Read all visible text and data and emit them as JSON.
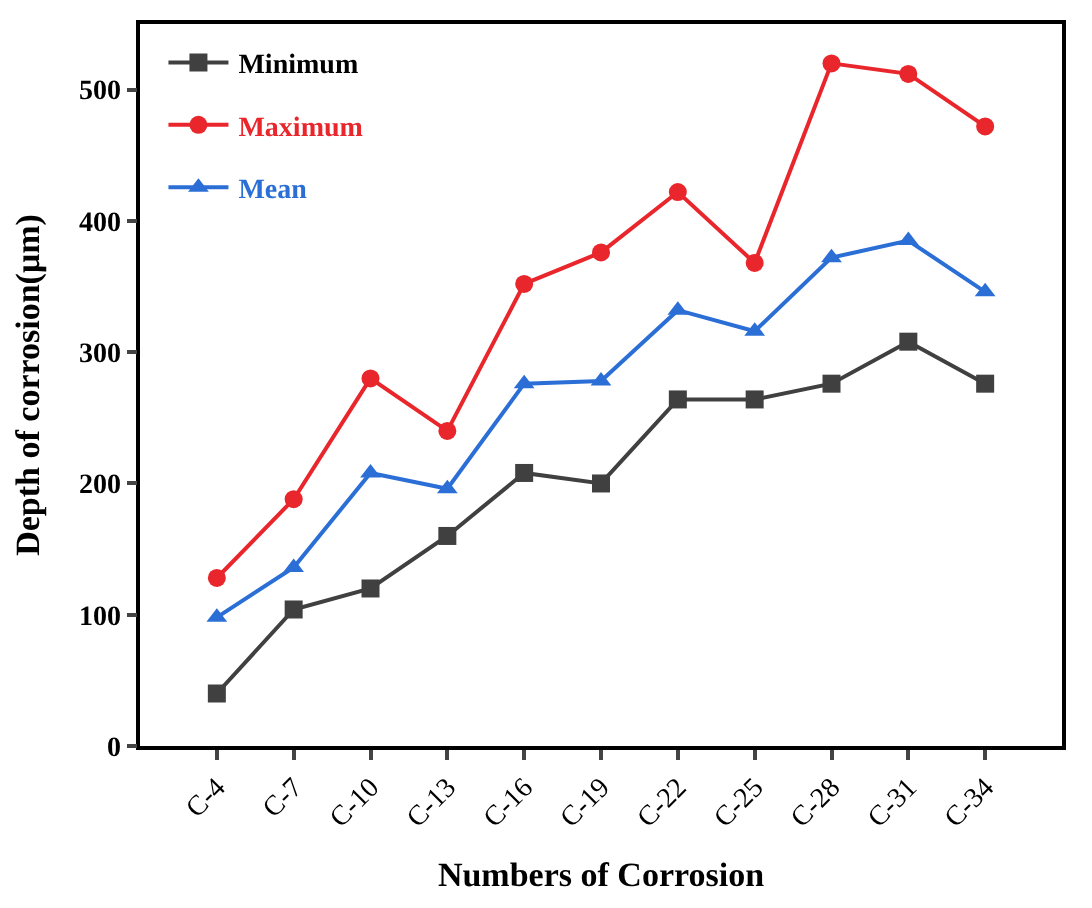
{
  "chart_data": {
    "type": "line",
    "xlabel": "Numbers of Corrosion",
    "ylabel": "Depth of corrosion(μm)",
    "categories": [
      "C-4",
      "C-7",
      "C-10",
      "C-13",
      "C-16",
      "C-19",
      "C-22",
      "C-25",
      "C-28",
      "C-31",
      "C-34"
    ],
    "series": [
      {
        "name": "Minimum",
        "color": "#404040",
        "marker": "square",
        "values": [
          40,
          104,
          120,
          160,
          208,
          200,
          264,
          264,
          276,
          308,
          276
        ]
      },
      {
        "name": "Maximum",
        "color": "#e8262b",
        "marker": "circle",
        "values": [
          128,
          188,
          280,
          240,
          352,
          376,
          422,
          368,
          520,
          512,
          472
        ]
      },
      {
        "name": "Mean",
        "color": "#2b6fd6",
        "marker": "triangle",
        "values": [
          98,
          136,
          208,
          196,
          276,
          278,
          332,
          316,
          372,
          385,
          346
        ]
      }
    ],
    "ylim": [
      0,
      550
    ],
    "yticks": [
      0,
      100,
      200,
      300,
      400,
      500
    ],
    "legend": "top left",
    "line_style": "solid"
  }
}
